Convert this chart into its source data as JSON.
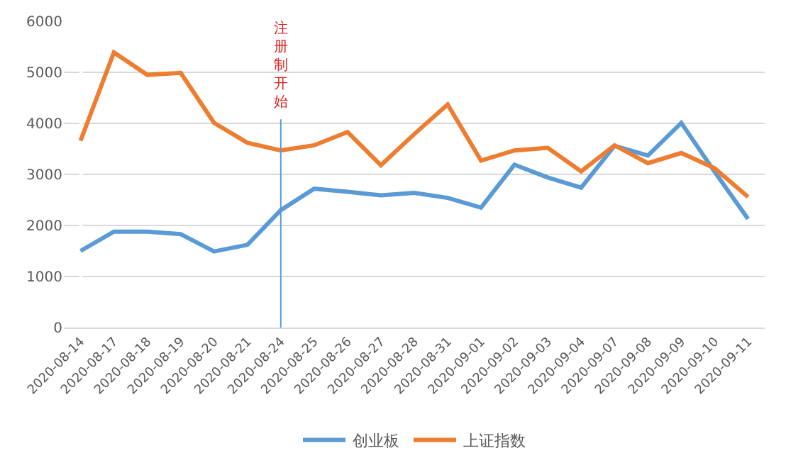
{
  "chart_data": {
    "type": "line",
    "categories": [
      "2020-08-14",
      "2020-08-17",
      "2020-08-18",
      "2020-08-19",
      "2020-08-20",
      "2020-08-21",
      "2020-08-24",
      "2020-08-25",
      "2020-08-26",
      "2020-08-27",
      "2020-08-28",
      "2020-08-31",
      "2020-09-01",
      "2020-09-02",
      "2020-09-03",
      "2020-09-04",
      "2020-09-07",
      "2020-09-08",
      "2020-09-09",
      "2020-09-10",
      "2020-09-11"
    ],
    "series": [
      {
        "name": "创业板",
        "color": "#5b9bd5",
        "values": [
          1500,
          1880,
          1880,
          1830,
          1490,
          1620,
          2300,
          2720,
          2660,
          2590,
          2640,
          2540,
          2350,
          3190,
          2940,
          2740,
          3560,
          3370,
          4010,
          3050,
          2130
        ]
      },
      {
        "name": "上证指数",
        "color": "#ed7d31",
        "values": [
          3660,
          5390,
          4950,
          4990,
          4010,
          3620,
          3470,
          3570,
          3830,
          3180,
          3790,
          4370,
          3270,
          3470,
          3520,
          3060,
          3570,
          3220,
          3420,
          3120,
          2560
        ]
      }
    ],
    "ylim": [
      0,
      6000
    ],
    "yticks": [
      0,
      1000,
      2000,
      3000,
      4000,
      5000,
      6000
    ],
    "ref_lines": [
      {
        "axis": "x",
        "value": "2020-08-24",
        "label": "注册制开始",
        "color": "#5b9bd5"
      }
    ],
    "grid": "y",
    "legend": "bottom",
    "marker": "none",
    "line_style": "solid"
  }
}
